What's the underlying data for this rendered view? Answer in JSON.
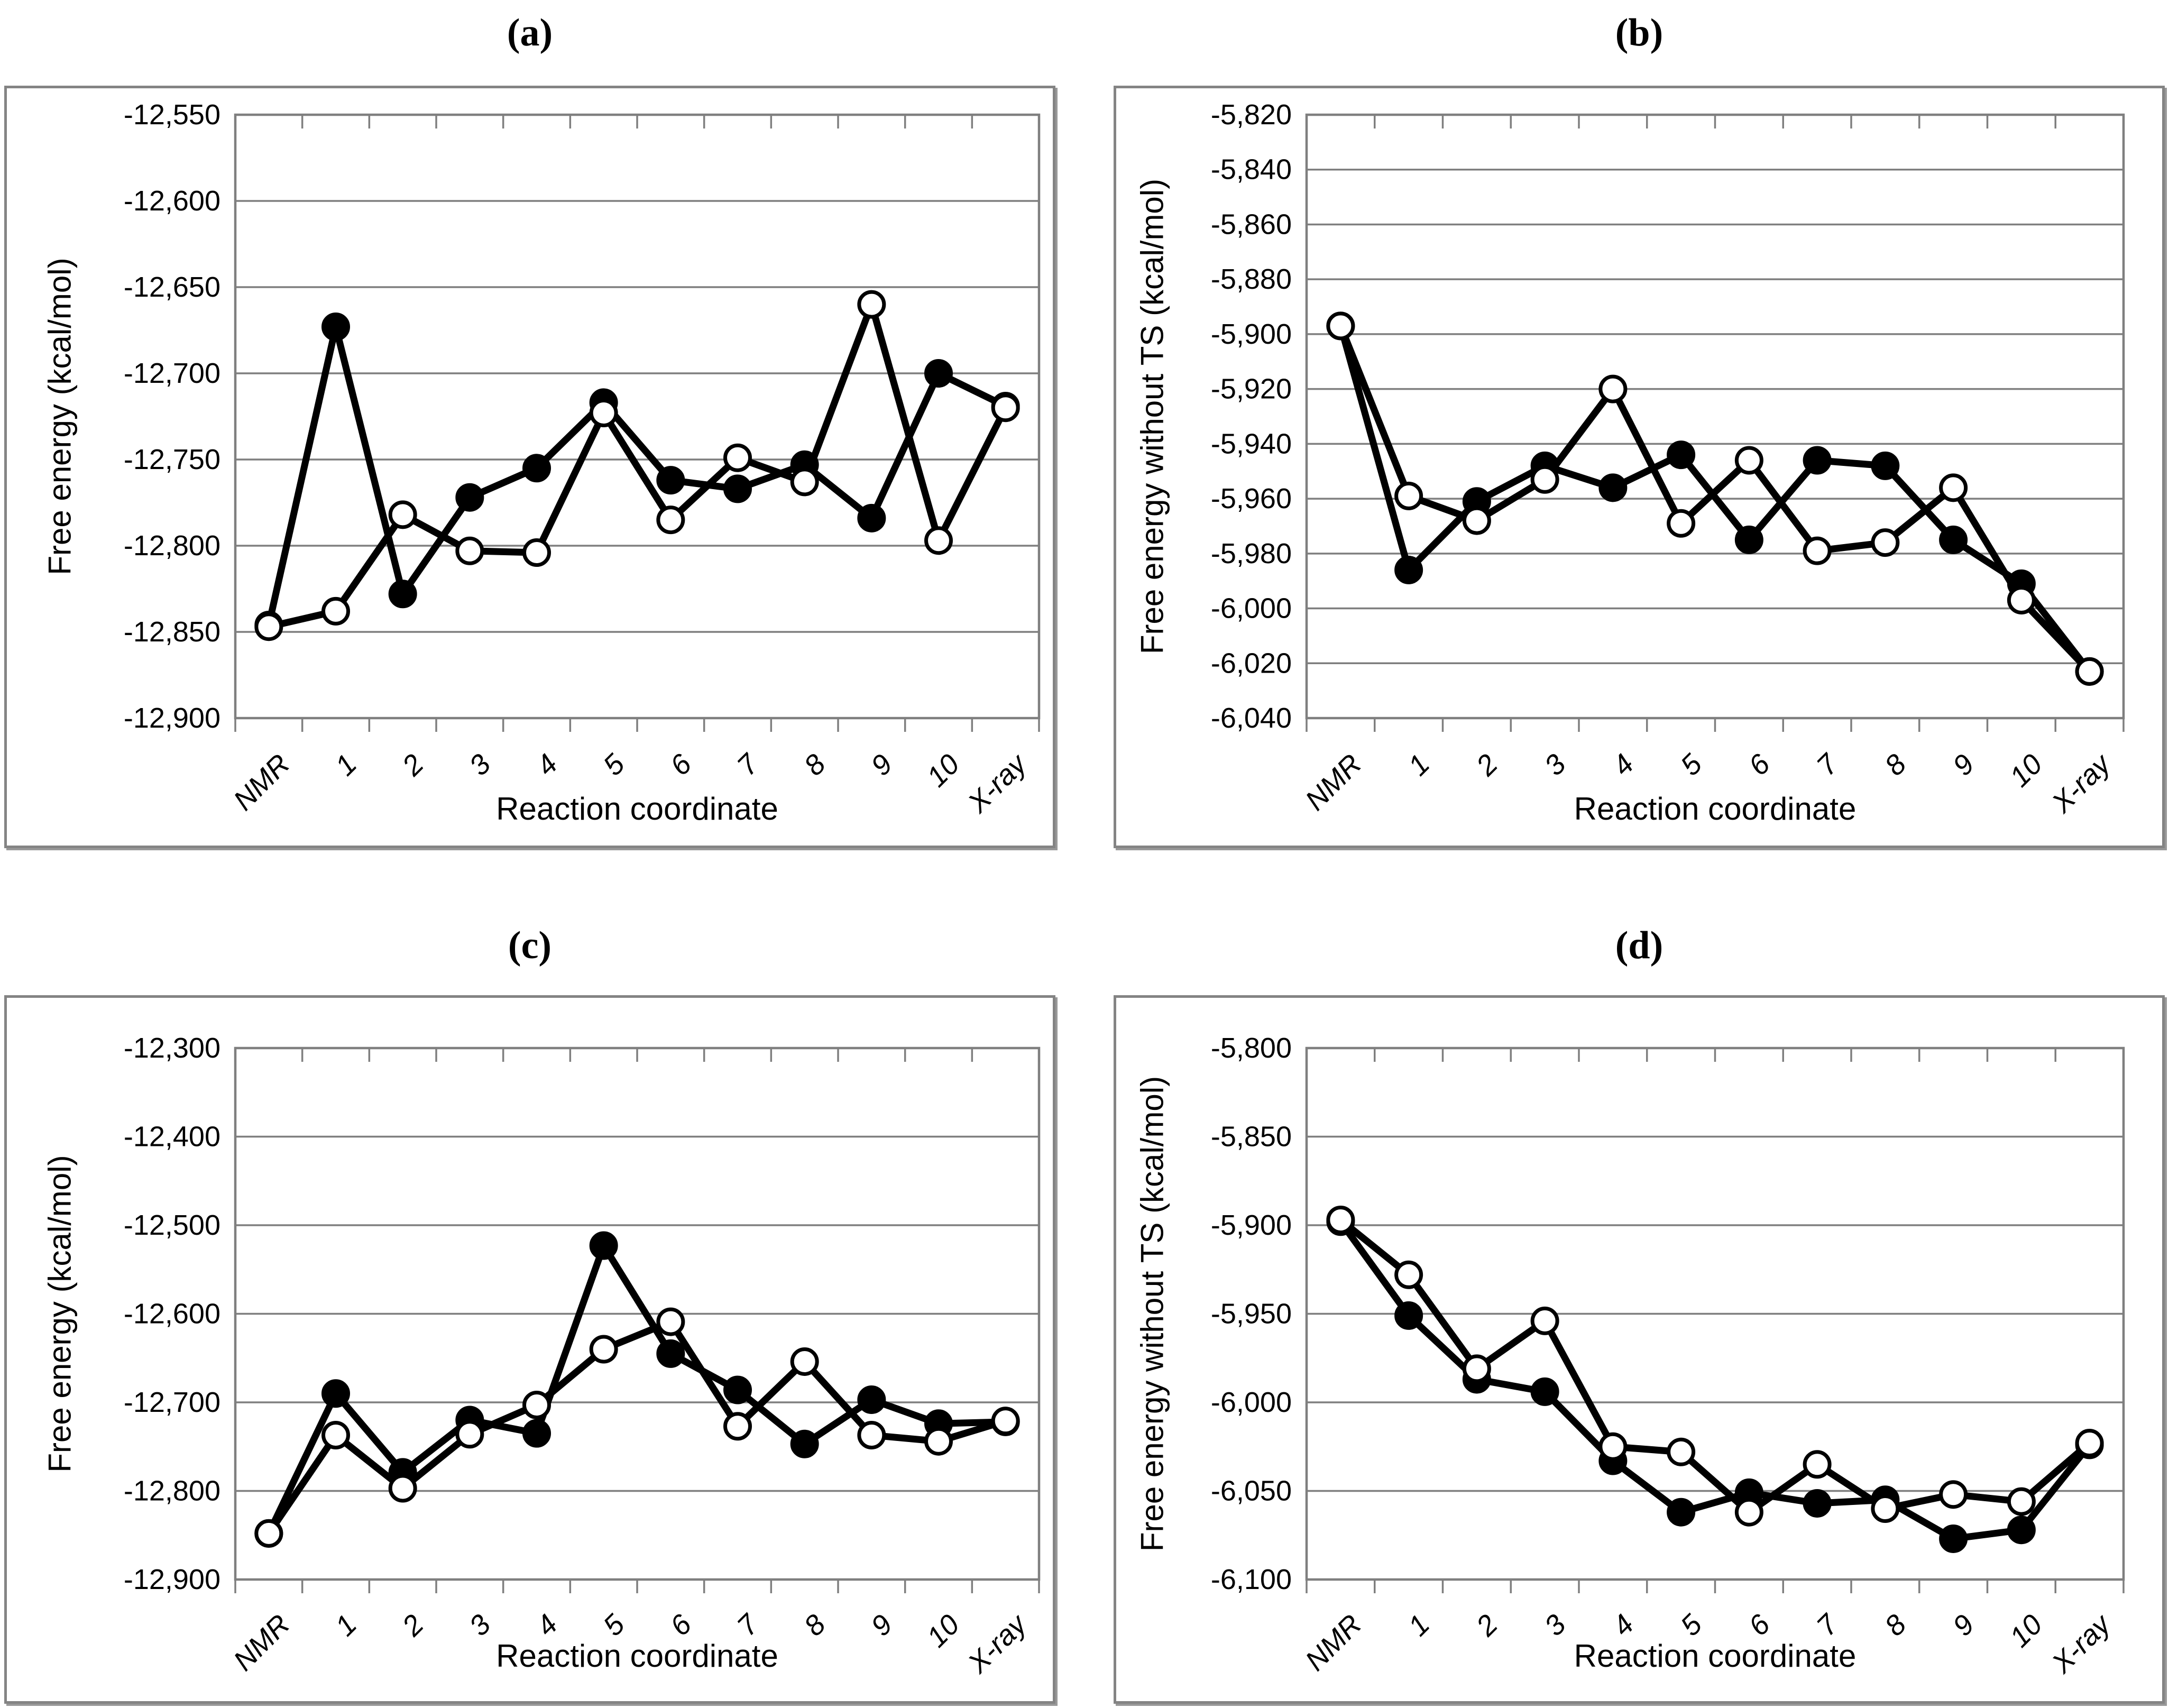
{
  "page": {
    "background": "#ffffff",
    "text_color": "#000000",
    "grid_color": "#7f7f7f",
    "series_color": "#000000"
  },
  "panel_labels": {
    "a": "(a)",
    "b": "(b)",
    "c": "(c)",
    "d": "(d)"
  },
  "chart_data": [
    {
      "panel_label": "(a)",
      "type": "line",
      "title": "",
      "xlabel": "Reaction coordinate",
      "ylabel": "Free energy (kcal/mol)",
      "categories": [
        "NMR",
        "1",
        "2",
        "3",
        "4",
        "5",
        "6",
        "7",
        "8",
        "9",
        "10",
        "X-ray"
      ],
      "ylim": [
        -12900,
        -12550
      ],
      "ytick_step": 50,
      "ytick_labels": [
        "-12,550",
        "-12,600",
        "-12,650",
        "-12,700",
        "-12,750",
        "-12,800",
        "-12,850",
        "-12,900"
      ],
      "grid": true,
      "legend_position": "none",
      "series": [
        {
          "name": "filled circles",
          "marker": "filled-circle",
          "color": "#000000",
          "values": [
            -12846,
            -12673,
            -12828,
            -12772,
            -12755,
            -12717,
            -12762,
            -12767,
            -12753,
            -12784,
            -12700,
            -12719
          ]
        },
        {
          "name": "open circles",
          "marker": "open-circle",
          "color": "#000000",
          "values": [
            -12847,
            -12838,
            -12782,
            -12803,
            -12804,
            -12723,
            -12785,
            -12749,
            -12763,
            -12660,
            -12797,
            -12720
          ]
        }
      ]
    },
    {
      "panel_label": "(b)",
      "type": "line",
      "title": "",
      "xlabel": "Reaction coordinate",
      "ylabel": "Free energy without TS (kcal/mol)",
      "categories": [
        "NMR",
        "1",
        "2",
        "3",
        "4",
        "5",
        "6",
        "7",
        "8",
        "9",
        "10",
        "X-ray"
      ],
      "ylim": [
        -6040,
        -5820
      ],
      "ytick_step": 20,
      "ytick_labels": [
        "-5,820",
        "-5,840",
        "-5,860",
        "-5,880",
        "-5,900",
        "-5,920",
        "-5,940",
        "-5,960",
        "-5,980",
        "-6,000",
        "-6,020",
        "-6,040"
      ],
      "grid": true,
      "legend_position": "none",
      "series": [
        {
          "name": "filled circles",
          "marker": "filled-circle",
          "color": "#000000",
          "values": [
            -5897,
            -5986,
            -5961,
            -5948,
            -5956,
            -5944,
            -5975,
            -5946,
            -5948,
            -5975,
            -5991,
            -6023
          ]
        },
        {
          "name": "open circles",
          "marker": "open-circle",
          "color": "#000000",
          "values": [
            -5897,
            -5959,
            -5968,
            -5953,
            -5920,
            -5969,
            -5946,
            -5979,
            -5976,
            -5956,
            -5997,
            -6023
          ]
        }
      ]
    },
    {
      "panel_label": "(c)",
      "type": "line",
      "title": "",
      "xlabel": "Reaction coordinate",
      "ylabel": "Free energy (kcal/mol)",
      "categories": [
        "NMR",
        "1",
        "2",
        "3",
        "4",
        "5",
        "6",
        "7",
        "8",
        "9",
        "10",
        "X-ray"
      ],
      "ylim": [
        -12900,
        -12300
      ],
      "ytick_step": 100,
      "ytick_labels": [
        "-12,300",
        "-12,400",
        "-12,500",
        "-12,600",
        "-12,700",
        "-12,800",
        "-12,900"
      ],
      "grid": true,
      "legend_position": "none",
      "series": [
        {
          "name": "filled circles",
          "marker": "filled-circle",
          "color": "#000000",
          "values": [
            -12848,
            -12690,
            -12779,
            -12720,
            -12735,
            -12523,
            -12645,
            -12686,
            -12747,
            -12697,
            -12724,
            -12722
          ]
        },
        {
          "name": "open circles",
          "marker": "open-circle",
          "color": "#000000",
          "values": [
            -12848,
            -12737,
            -12797,
            -12736,
            -12703,
            -12640,
            -12609,
            -12727,
            -12654,
            -12737,
            -12744,
            -12721
          ]
        }
      ]
    },
    {
      "panel_label": "(d)",
      "type": "line",
      "title": "",
      "xlabel": "Reaction coordinate",
      "ylabel": "Free energy without TS (kcal/mol)",
      "categories": [
        "NMR",
        "1",
        "2",
        "3",
        "4",
        "5",
        "6",
        "7",
        "8",
        "9",
        "10",
        "X-ray"
      ],
      "ylim": [
        -6100,
        -5800
      ],
      "ytick_step": 50,
      "ytick_labels": [
        "-5,800",
        "-5,850",
        "-5,900",
        "-5,950",
        "-6,000",
        "-6,050",
        "-6,100"
      ],
      "grid": true,
      "legend_position": "none",
      "series": [
        {
          "name": "filled circles",
          "marker": "filled-circle",
          "color": "#000000",
          "values": [
            -5898,
            -5951,
            -5987,
            -5994,
            -6033,
            -6062,
            -6051,
            -6057,
            -6055,
            -6077,
            -6072,
            -6024
          ]
        },
        {
          "name": "open circles",
          "marker": "open-circle",
          "color": "#000000",
          "values": [
            -5897,
            -5928,
            -5981,
            -5954,
            -6025,
            -6028,
            -6062,
            -6035,
            -6060,
            -6052,
            -6056,
            -6023
          ]
        }
      ]
    }
  ]
}
